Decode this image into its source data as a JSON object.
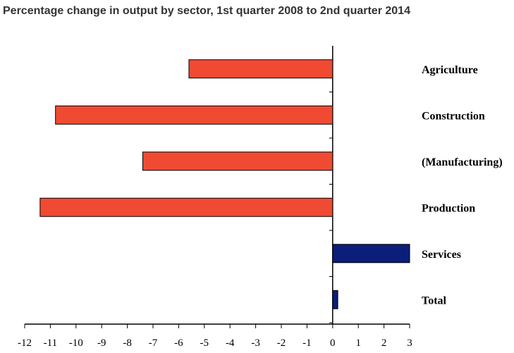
{
  "chart_data": {
    "type": "bar",
    "orientation": "horizontal",
    "title": "Percentage change in output by sector, 1st quarter 2008 to 2nd quarter 2014",
    "categories": [
      "Agriculture",
      "Construction",
      "(Manufacturing)",
      "Production",
      "Services",
      "Total"
    ],
    "values": [
      -5.6,
      -10.8,
      -7.4,
      -11.4,
      3.0,
      0.2
    ],
    "colors": [
      "#f04a33",
      "#f04a33",
      "#f04a33",
      "#f04a33",
      "#0a1e7a",
      "#0a1e7a"
    ],
    "xlim": [
      -12,
      3
    ],
    "xticks": [
      -12,
      -11,
      -10,
      -9,
      -8,
      -7,
      -6,
      -5,
      -4,
      -3,
      -2,
      -1,
      0,
      1,
      2,
      3
    ]
  }
}
